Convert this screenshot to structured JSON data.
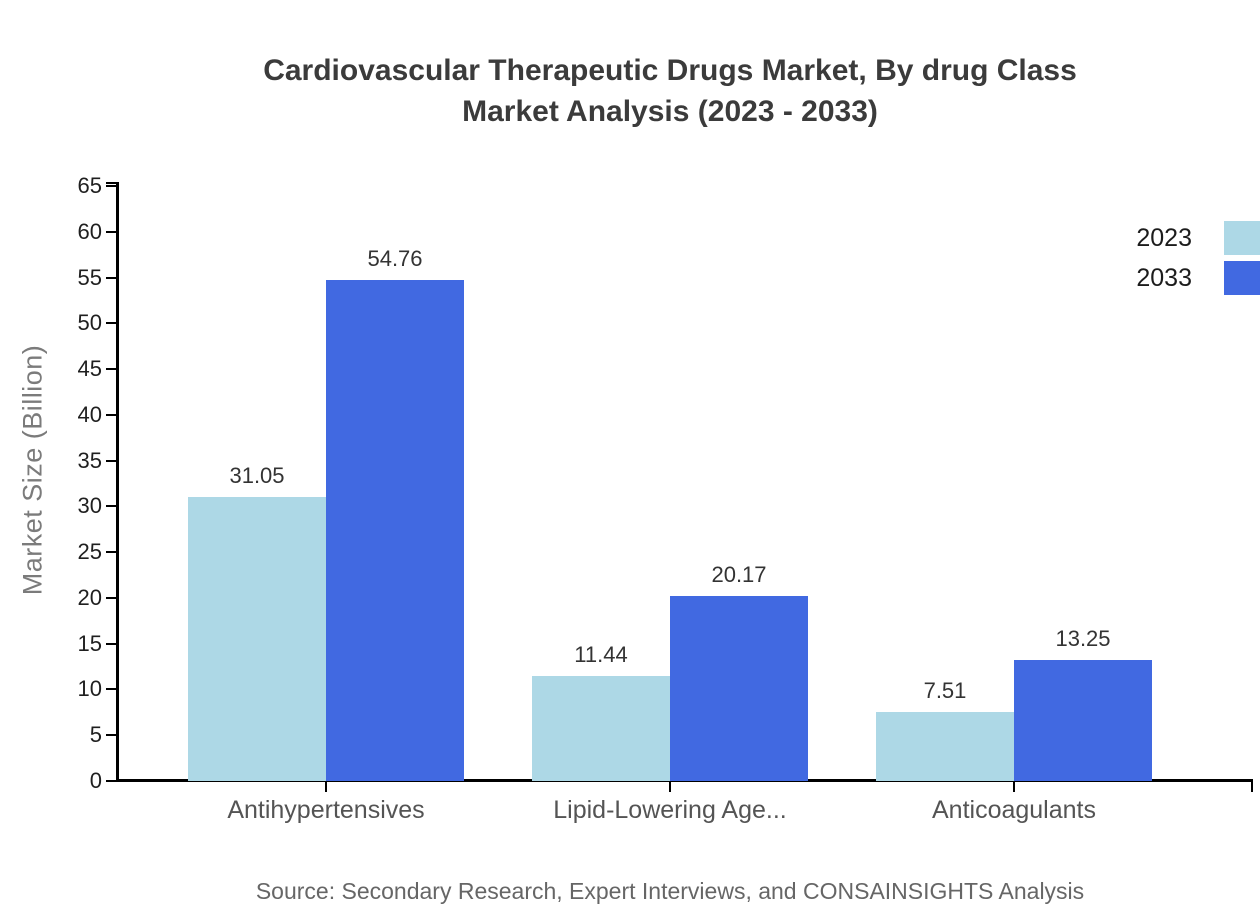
{
  "title": {
    "line1": "Cardiovascular Therapeutic Drugs Market, By drug Class",
    "line2": "Market Analysis (2023 - 2033)"
  },
  "source_note": "Source: Secondary Research, Expert Interviews, and CONSAINSIGHTS Analysis",
  "legend": {
    "items": [
      {
        "label": "2023",
        "color": "#ADD8E6"
      },
      {
        "label": "2033",
        "color": "#4169E1"
      }
    ]
  },
  "colors": {
    "background": "#ffffff",
    "axis": "#000000",
    "title_text": "#3b3b3b",
    "tick_label_text": "#1f1f1f",
    "category_label_text": "#545454",
    "y_axis_title_text": "#7b7b7b",
    "data_label_text": "#333333",
    "source_text": "#666666",
    "series_2023": "#ADD8E6",
    "series_2033": "#4169E1"
  },
  "chart_data": {
    "type": "bar",
    "title": "Cardiovascular Therapeutic Drugs Market, By drug Class Market Analysis (2023 - 2033)",
    "categories": [
      "Antihypertensives",
      "Lipid-Lowering Age...",
      "Anticoagulants"
    ],
    "series": [
      {
        "name": "2023",
        "color": "#ADD8E6",
        "values": [
          31.05,
          11.44,
          7.51
        ]
      },
      {
        "name": "2033",
        "color": "#4169E1",
        "values": [
          54.76,
          20.17,
          13.25
        ]
      }
    ],
    "data_labels": [
      [
        "31.05",
        "11.44",
        "7.51"
      ],
      [
        "54.76",
        "20.17",
        "13.25"
      ]
    ],
    "xlabel": "",
    "ylabel": "Market Size (Billion)",
    "ylim": [
      0,
      65
    ],
    "ytick_step": 5,
    "grid": false,
    "legend_position": "right-top",
    "data_labels_shown": true
  }
}
